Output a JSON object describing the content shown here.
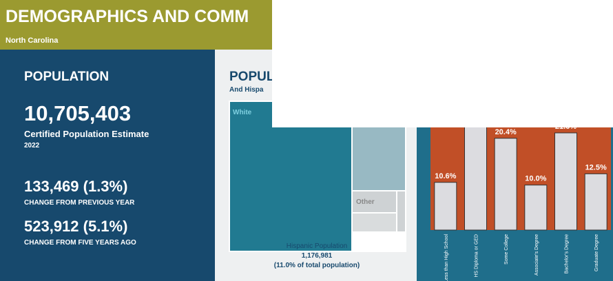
{
  "header": {
    "title": "DEMOGRAPHICS AND COMM",
    "subtitle": "North Carolina"
  },
  "population": {
    "title": "POPULATION",
    "estimate": "10,705,403",
    "estimate_label": "Certified Population Estimate",
    "year": "2022",
    "change_year": "133,469 (1.3%)",
    "change_year_label": "CHANGE FROM PREVIOUS YEAR",
    "change_five": "523,912 (5.1%)",
    "change_five_label": "CHANGE FROM FIVE YEARS AGO"
  },
  "race": {
    "title": "POPUL",
    "subtitle": "And Hispa",
    "nodes": [
      {
        "label": "White"
      },
      {
        "label": "Other"
      }
    ],
    "hispanic_label": "Hispanic Population",
    "hispanic_value": "1,176,981",
    "hispanic_share": "(11.0% of total population)"
  },
  "chart_data": {
    "type": "bar",
    "categories": [
      "Less than High School",
      "HS Diploma or GED",
      "Some College",
      "Associate's Degree",
      "Bachelor's Degree",
      "Graduate Degree"
    ],
    "values": [
      10.6,
      24.9,
      20.4,
      10.0,
      21.6,
      12.5
    ],
    "value_labels": [
      "10.6%",
      null,
      "20.4%",
      "10.0%",
      "21.6%",
      "12.5%"
    ],
    "color": "#dcdce0",
    "background": "#c14f27",
    "ylim": [
      0,
      25
    ]
  }
}
